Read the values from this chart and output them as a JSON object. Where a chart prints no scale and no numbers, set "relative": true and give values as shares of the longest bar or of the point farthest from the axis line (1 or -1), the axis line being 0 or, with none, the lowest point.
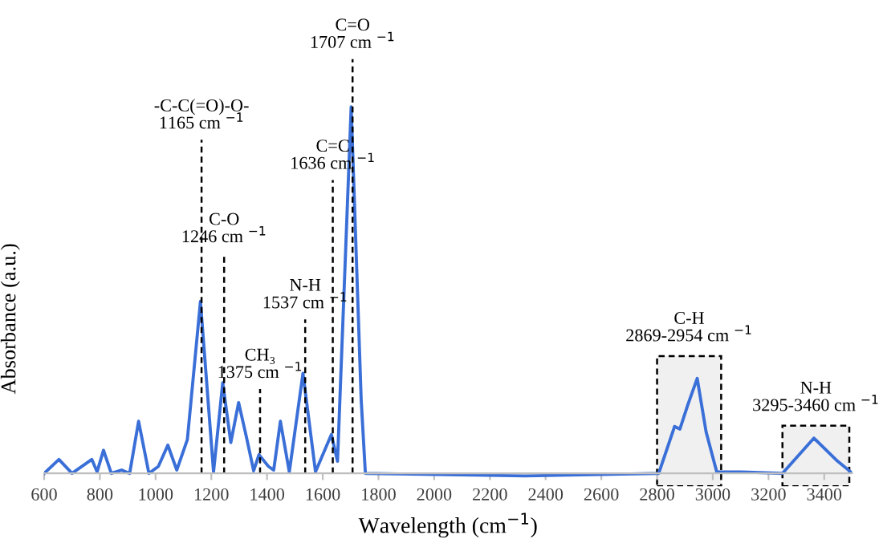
{
  "chart_data": {
    "type": "line",
    "xlabel": "Wavelength (cm$^{−1}$)",
    "ylabel": "Absorbance (a.u.)",
    "relative": true,
    "tick_labels": "x",
    "grid": false,
    "legend": false,
    "marker": "none",
    "line_style": "solid",
    "xlim": [
      600,
      3500
    ],
    "xticks": [
      600,
      800,
      1000,
      1200,
      1400,
      1600,
      1800,
      2000,
      2200,
      2400,
      2600,
      2800,
      3000,
      3200,
      3400
    ],
    "series": [
      {
        "color": "#3a6fd8",
        "x": [
          600,
          653,
          700,
          771,
          790,
          813,
          841,
          878,
          907,
          939,
          976,
          1010,
          1044,
          1076,
          1114,
          1161,
          1208,
          1241,
          1270,
          1298,
          1326,
          1352,
          1371,
          1405,
          1424,
          1448,
          1480,
          1529,
          1574,
          1631,
          1653,
          1702,
          1738,
          1753,
          2327,
          2806,
          2863,
          2882,
          2910,
          2944,
          2976,
          3014,
          3100,
          3250,
          3363,
          3448,
          3495
        ],
        "values": [
          0,
          0.038,
          0,
          0.038,
          0.004,
          0.063,
          0,
          0.009,
          0,
          0.142,
          0,
          0.019,
          0.077,
          0.009,
          0.092,
          0.469,
          0.004,
          0.247,
          0.084,
          0.193,
          0.099,
          0.007,
          0.051,
          0.019,
          0.009,
          0.142,
          0.004,
          0.273,
          0.004,
          0.106,
          0.033,
          1,
          0.2,
          0,
          -0.007,
          0,
          0.128,
          0.121,
          0.186,
          0.259,
          0.113,
          0.004,
          0.004,
          0,
          0.096,
          0.033,
          0.004
        ]
      }
    ],
    "ref_lines": [
      {
        "axis": "x",
        "value": 1165,
        "label": "-C-C(=O)-O-\n1165 cm $^{−1}$",
        "line_style": "dashed",
        "color": "#000000"
      },
      {
        "axis": "x",
        "value": 1246,
        "label": "C-O\n1246 cm $^{−1}$",
        "line_style": "dashed",
        "color": "#000000"
      },
      {
        "axis": "x",
        "value": 1375,
        "label": "CH₃\n1375 cm $^{−1}$",
        "line_style": "dashed",
        "color": "#000000"
      },
      {
        "axis": "x",
        "value": 1537,
        "label": "N-H\n1537 cm $^{−1}$",
        "line_style": "dashed",
        "color": "#000000"
      },
      {
        "axis": "x",
        "value": 1636,
        "label": "C=C\n1636 cm $^{−1}$",
        "line_style": "dashed",
        "color": "#000000"
      },
      {
        "axis": "x",
        "value": 1707,
        "label": "C=O\n1707 cm $^{−1}$",
        "line_style": "dashed",
        "color": "#000000"
      }
    ],
    "bands": [
      {
        "axis": "x",
        "from": 2800,
        "to": 3030,
        "label": "C-H\n2869-2954 cm $^{−1}$",
        "color": "#000000"
      },
      {
        "axis": "x",
        "from": 3250,
        "to": 3490,
        "label": "N-H\n3295-3460 cm $^{−1}$",
        "color": "#000000"
      }
    ]
  }
}
